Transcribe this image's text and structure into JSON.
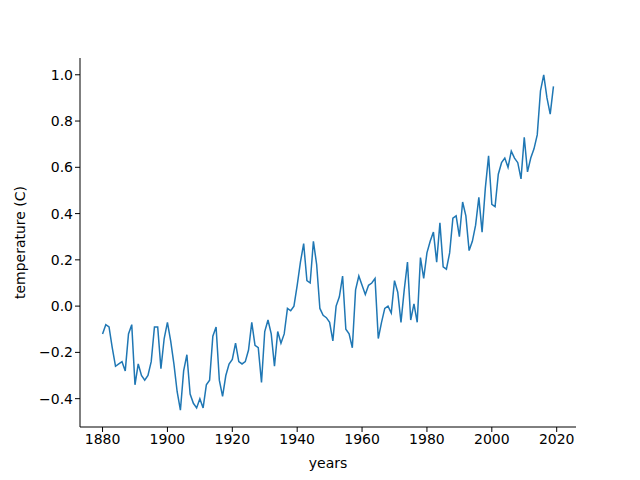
{
  "chart_data": {
    "type": "line",
    "x_label": "years",
    "y_label": "temperature (C)",
    "color": "#1f77b4",
    "grid": false,
    "x": [
      1880,
      1881,
      1882,
      1883,
      1884,
      1885,
      1886,
      1887,
      1888,
      1889,
      1890,
      1891,
      1892,
      1893,
      1894,
      1895,
      1896,
      1897,
      1898,
      1899,
      1900,
      1901,
      1902,
      1903,
      1904,
      1905,
      1906,
      1907,
      1908,
      1909,
      1910,
      1911,
      1912,
      1913,
      1914,
      1915,
      1916,
      1917,
      1918,
      1919,
      1920,
      1921,
      1922,
      1923,
      1924,
      1925,
      1926,
      1927,
      1928,
      1929,
      1930,
      1931,
      1932,
      1933,
      1934,
      1935,
      1936,
      1937,
      1938,
      1939,
      1940,
      1941,
      1942,
      1943,
      1944,
      1945,
      1946,
      1947,
      1948,
      1949,
      1950,
      1951,
      1952,
      1953,
      1954,
      1955,
      1956,
      1957,
      1958,
      1959,
      1960,
      1961,
      1962,
      1963,
      1964,
      1965,
      1966,
      1967,
      1968,
      1969,
      1970,
      1971,
      1972,
      1973,
      1974,
      1975,
      1976,
      1977,
      1978,
      1979,
      1980,
      1981,
      1982,
      1983,
      1984,
      1985,
      1986,
      1987,
      1988,
      1989,
      1990,
      1991,
      1992,
      1993,
      1994,
      1995,
      1996,
      1997,
      1998,
      1999,
      2000,
      2001,
      2002,
      2003,
      2004,
      2005,
      2006,
      2007,
      2008,
      2009,
      2010,
      2011,
      2012,
      2013,
      2014,
      2015,
      2016,
      2017,
      2018,
      2019
    ],
    "values": [
      -0.12,
      -0.08,
      -0.09,
      -0.18,
      -0.26,
      -0.25,
      -0.24,
      -0.28,
      -0.12,
      -0.08,
      -0.34,
      -0.25,
      -0.3,
      -0.32,
      -0.3,
      -0.24,
      -0.09,
      -0.09,
      -0.27,
      -0.14,
      -0.07,
      -0.15,
      -0.25,
      -0.37,
      -0.45,
      -0.28,
      -0.21,
      -0.38,
      -0.42,
      -0.44,
      -0.4,
      -0.44,
      -0.34,
      -0.32,
      -0.13,
      -0.09,
      -0.32,
      -0.39,
      -0.3,
      -0.25,
      -0.23,
      -0.16,
      -0.24,
      -0.25,
      -0.24,
      -0.19,
      -0.07,
      -0.17,
      -0.18,
      -0.33,
      -0.11,
      -0.06,
      -0.12,
      -0.26,
      -0.11,
      -0.16,
      -0.12,
      -0.01,
      -0.02,
      0.0,
      0.09,
      0.19,
      0.27,
      0.11,
      0.1,
      0.28,
      0.18,
      -0.01,
      -0.04,
      -0.05,
      -0.07,
      -0.15,
      0.0,
      0.04,
      0.13,
      -0.1,
      -0.12,
      -0.18,
      0.07,
      0.13,
      0.09,
      0.05,
      0.09,
      0.1,
      0.12,
      -0.14,
      -0.07,
      -0.01,
      0.0,
      -0.03,
      0.11,
      0.06,
      -0.07,
      0.07,
      0.19,
      -0.06,
      0.01,
      -0.07,
      0.21,
      0.12,
      0.23,
      0.28,
      0.32,
      0.19,
      0.36,
      0.17,
      0.16,
      0.23,
      0.38,
      0.39,
      0.3,
      0.45,
      0.39,
      0.24,
      0.28,
      0.35,
      0.47,
      0.32,
      0.51,
      0.65,
      0.44,
      0.43,
      0.57,
      0.62,
      0.64,
      0.6,
      0.67,
      0.64,
      0.62,
      0.55,
      0.73,
      0.58,
      0.64,
      0.68,
      0.74,
      0.93,
      1.0,
      0.9,
      0.83,
      0.95
    ],
    "xlim": [
      1873.05,
      2025.95
    ],
    "ylim": [
      -0.5225,
      1.0725
    ],
    "xticks": [
      1880,
      1900,
      1920,
      1940,
      1960,
      1980,
      2000,
      2020
    ],
    "yticks": [
      {
        "value": -0.4,
        "label": "−0.4"
      },
      {
        "value": -0.2,
        "label": "−0.2"
      },
      {
        "value": 0,
        "label": "0.0"
      },
      {
        "value": 0.2,
        "label": "0.2"
      },
      {
        "value": 0.4,
        "label": "0.4"
      },
      {
        "value": 0.6,
        "label": "0.6"
      },
      {
        "value": 0.8,
        "label": "0.8"
      },
      {
        "value": 1.0,
        "label": "1.0"
      }
    ]
  }
}
